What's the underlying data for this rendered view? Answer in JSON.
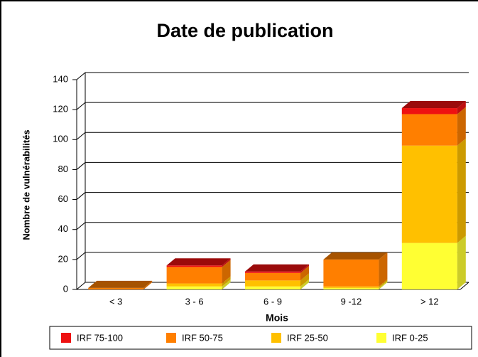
{
  "chart_data": {
    "type": "bar3d_stacked",
    "title": "Date de publication",
    "x_label": "Mois",
    "y_label": "Nombre de vulnérabilités",
    "categories": [
      "< 3",
      "3 - 6",
      "6 - 9",
      "9 -12",
      "> 12"
    ],
    "series": [
      {
        "name": "IRF 75-100",
        "color": "#ee1111",
        "values": [
          0,
          1,
          1,
          0,
          4
        ]
      },
      {
        "name": "IRF 50-75",
        "color": "#ff7f00",
        "values": [
          1,
          11,
          5,
          18,
          21
        ]
      },
      {
        "name": "IRF 25-50",
        "color": "#ffc000",
        "values": [
          0,
          2,
          4,
          1,
          65
        ]
      },
      {
        "name": "IRF 0-25",
        "color": "#ffff33",
        "values": [
          0,
          2,
          2,
          1,
          31
        ]
      }
    ],
    "ylim": [
      0,
      140
    ],
    "yticks": [
      0,
      20,
      40,
      60,
      80,
      100,
      120,
      140
    ],
    "grid": true
  }
}
